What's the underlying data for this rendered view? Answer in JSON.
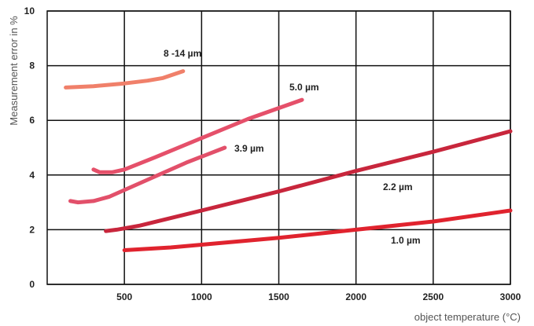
{
  "chart_data": {
    "type": "line",
    "title": "",
    "xlabel": "object temperature (°C)",
    "ylabel": "Measurement error in %",
    "xlim": [
      0,
      3000
    ],
    "ylim": [
      0,
      10
    ],
    "x_ticks": [
      "500",
      "1000",
      "1500",
      "2000",
      "2500",
      "3000"
    ],
    "y_ticks": [
      "0",
      "2",
      "4",
      "6",
      "8",
      "10"
    ],
    "grid": true,
    "legend": "none",
    "series": [
      {
        "name": "8 -14 µm",
        "color": "#f0806a",
        "x": [
          120,
          300,
          500,
          650,
          750,
          880
        ],
        "y": [
          7.2,
          7.25,
          7.35,
          7.45,
          7.55,
          7.8
        ]
      },
      {
        "name": "5.0 µm",
        "color": "#e5506a",
        "x": [
          300,
          340,
          420,
          500,
          700,
          1000,
          1300,
          1650
        ],
        "y": [
          4.2,
          4.1,
          4.1,
          4.2,
          4.65,
          5.35,
          6.05,
          6.75
        ]
      },
      {
        "name": "3.9 µm",
        "color": "#e2506a",
        "x": [
          150,
          200,
          300,
          400,
          500,
          700,
          900,
          1150
        ],
        "y": [
          3.05,
          3.0,
          3.05,
          3.2,
          3.45,
          3.95,
          4.45,
          5.0
        ]
      },
      {
        "name": "2.2 µm",
        "color": "#c8263c",
        "x": [
          380,
          450,
          600,
          1000,
          1500,
          2000,
          2500,
          3000
        ],
        "y": [
          1.95,
          2.0,
          2.15,
          2.7,
          3.4,
          4.15,
          4.85,
          5.6
        ]
      },
      {
        "name": "1.0 µm",
        "color": "#e0232e",
        "x": [
          500,
          800,
          1000,
          1500,
          2000,
          2500,
          3000
        ],
        "y": [
          1.25,
          1.35,
          1.45,
          1.7,
          2.0,
          2.3,
          2.7
        ]
      }
    ]
  }
}
